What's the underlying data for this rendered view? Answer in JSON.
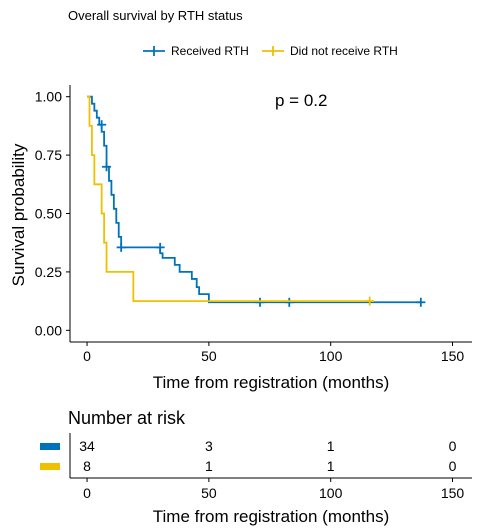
{
  "chart_data": [
    {
      "type": "line",
      "subtype": "kaplan-meier",
      "title": "Overall survival by RTH status",
      "xlabel": "Time from registration (months)",
      "ylabel": "Survival probability",
      "xlim": [
        -7,
        158
      ],
      "ylim": [
        -0.05,
        1.05
      ],
      "xticks": [
        0,
        50,
        100,
        150
      ],
      "yticks": [
        0.0,
        0.25,
        0.5,
        0.75,
        1.0
      ],
      "ytick_labels": [
        "0.00",
        "0.25",
        "0.50",
        "0.75",
        "1.00"
      ],
      "grid": false,
      "legend_position": "top",
      "annotation": "p = 0.2",
      "series": [
        {
          "name": "Received RTH",
          "color": "#0072BD",
          "steps": [
            [
              0,
              1.0
            ],
            [
              2,
              1.0
            ],
            [
              2,
              0.97
            ],
            [
              3,
              0.97
            ],
            [
              3,
              0.94
            ],
            [
              4,
              0.94
            ],
            [
              4,
              0.91
            ],
            [
              5,
              0.91
            ],
            [
              5,
              0.88
            ],
            [
              6,
              0.88
            ],
            [
              6,
              0.85
            ],
            [
              7,
              0.85
            ],
            [
              7,
              0.79
            ],
            [
              8,
              0.79
            ],
            [
              8,
              0.7
            ],
            [
              9,
              0.7
            ],
            [
              9,
              0.64
            ],
            [
              10,
              0.64
            ],
            [
              10,
              0.58
            ],
            [
              11,
              0.58
            ],
            [
              11,
              0.52
            ],
            [
              12,
              0.52
            ],
            [
              12,
              0.46
            ],
            [
              13,
              0.46
            ],
            [
              13,
              0.4
            ],
            [
              14,
              0.4
            ],
            [
              14,
              0.355
            ],
            [
              30,
              0.355
            ],
            [
              30,
              0.33
            ],
            [
              31,
              0.33
            ],
            [
              31,
              0.31
            ],
            [
              36,
              0.31
            ],
            [
              36,
              0.28
            ],
            [
              38,
              0.28
            ],
            [
              38,
              0.25
            ],
            [
              43,
              0.25
            ],
            [
              43,
              0.22
            ],
            [
              45,
              0.22
            ],
            [
              45,
              0.185
            ],
            [
              46,
              0.185
            ],
            [
              46,
              0.155
            ],
            [
              50,
              0.155
            ],
            [
              50,
              0.12
            ],
            [
              137,
              0.12
            ]
          ],
          "censored": [
            [
              6,
              0.88
            ],
            [
              8,
              0.7
            ],
            [
              14,
              0.355
            ],
            [
              30,
              0.355
            ],
            [
              71,
              0.12
            ],
            [
              83,
              0.12
            ],
            [
              137,
              0.12
            ]
          ]
        },
        {
          "name": "Did not receive RTH",
          "color": "#EFC000",
          "steps": [
            [
              0,
              1.0
            ],
            [
              1,
              1.0
            ],
            [
              1,
              0.875
            ],
            [
              2,
              0.875
            ],
            [
              2,
              0.75
            ],
            [
              3,
              0.75
            ],
            [
              3,
              0.625
            ],
            [
              6,
              0.625
            ],
            [
              6,
              0.5
            ],
            [
              7,
              0.5
            ],
            [
              7,
              0.375
            ],
            [
              8,
              0.375
            ],
            [
              8,
              0.25
            ],
            [
              19,
              0.25
            ],
            [
              19,
              0.125
            ],
            [
              116,
              0.125
            ]
          ],
          "censored": [
            [
              116,
              0.125
            ]
          ]
        }
      ]
    },
    {
      "type": "table",
      "title": "Number at risk",
      "xlabel": "Time from registration (months)",
      "xticks": [
        0,
        50,
        100,
        150
      ],
      "rows": [
        {
          "color": "#0072BD",
          "values": [
            "34",
            "3",
            "1",
            "0"
          ]
        },
        {
          "color": "#EFC000",
          "values": [
            "8",
            "1",
            "1",
            "0"
          ]
        }
      ]
    }
  ]
}
